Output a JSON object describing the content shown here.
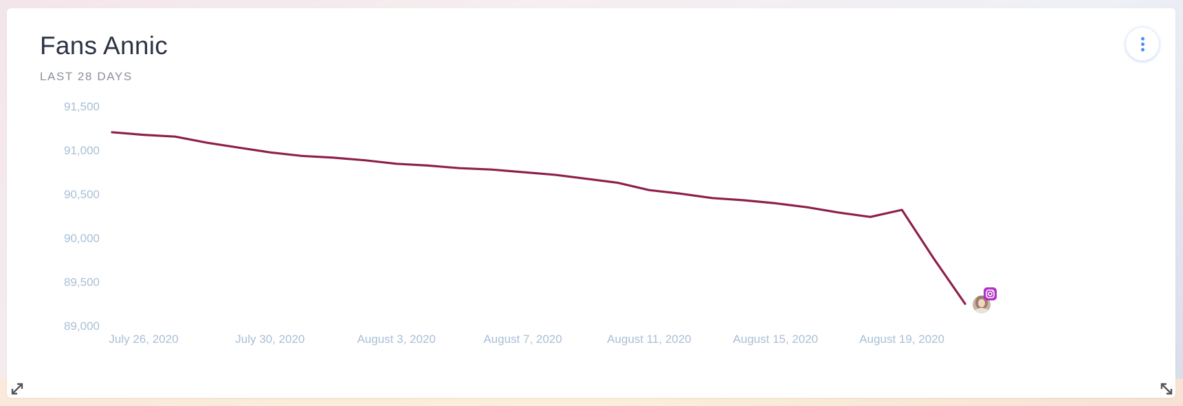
{
  "card": {
    "title": "Fans Annic",
    "subtitle": "LAST 28 DAYS"
  },
  "icons": {
    "menu": "more-vertical-icon",
    "expand_left": "expand-diagonal-icon",
    "expand_right": "resize-diagonal-icon",
    "marker": "instagram-icon"
  },
  "colors": {
    "line": "#8e1f4b",
    "axis_text": "#a9bfd6",
    "badge": "#b031c4",
    "menu_dots": "#4a8ef0"
  },
  "chart_data": {
    "type": "line",
    "title": "Fans Annic",
    "subtitle": "LAST 28 DAYS",
    "xlabel": "",
    "ylabel": "",
    "ylim": [
      89000,
      91500
    ],
    "yticks": [
      "91,500",
      "91,000",
      "90,500",
      "90,000",
      "89,500",
      "89,000"
    ],
    "yticks_values": [
      91500,
      91000,
      90500,
      90000,
      89500,
      89000
    ],
    "xticks": [
      "July 26, 2020",
      "July 30, 2020",
      "August 3, 2020",
      "August 7, 2020",
      "August 11, 2020",
      "August 15, 2020",
      "August 19, 2020"
    ],
    "xticks_index": [
      1,
      5,
      9,
      13,
      17,
      21,
      25
    ],
    "grid": false,
    "series": [
      {
        "x": [
          "July 25, 2020",
          "July 26, 2020",
          "July 27, 2020",
          "July 28, 2020",
          "July 29, 2020",
          "July 30, 2020",
          "July 31, 2020",
          "August 1, 2020",
          "August 2, 2020",
          "August 3, 2020",
          "August 4, 2020",
          "August 5, 2020",
          "August 6, 2020",
          "August 7, 2020",
          "August 8, 2020",
          "August 9, 2020",
          "August 10, 2020",
          "August 11, 2020",
          "August 12, 2020",
          "August 13, 2020",
          "August 14, 2020",
          "August 15, 2020",
          "August 16, 2020",
          "August 17, 2020",
          "August 18, 2020",
          "August 19, 2020",
          "August 20, 2020",
          "August 21, 2020"
        ],
        "values": [
          91205,
          91175,
          91155,
          91085,
          91030,
          90975,
          90935,
          90915,
          90885,
          90845,
          90825,
          90795,
          90780,
          90750,
          90720,
          90675,
          90630,
          90545,
          90505,
          90455,
          90430,
          90395,
          90350,
          90290,
          90240,
          90320,
          89770,
          89250
        ]
      }
    ]
  }
}
